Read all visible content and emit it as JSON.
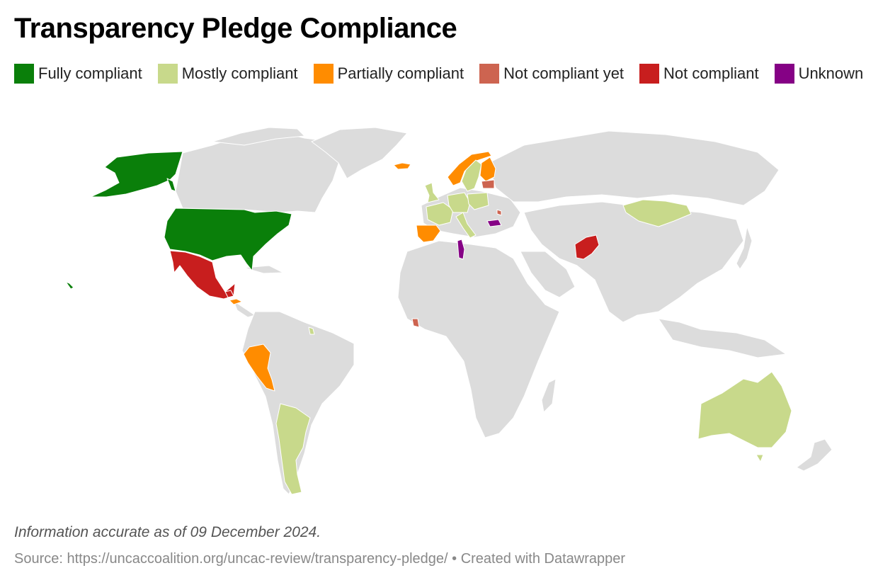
{
  "title": "Transparency Pledge Compliance",
  "legend": [
    {
      "label": "Fully compliant",
      "color": "#0a7f0a"
    },
    {
      "label": "Mostly compliant",
      "color": "#c8d98b"
    },
    {
      "label": "Partially compliant",
      "color": "#ff8c00"
    },
    {
      "label": "Not compliant yet",
      "color": "#cd6450"
    },
    {
      "label": "Not compliant",
      "color": "#c81e1e"
    },
    {
      "label": "Unknown",
      "color": "#850185"
    }
  ],
  "map": {
    "base_color": "#dcdcdc",
    "border_color": "#ffffff",
    "regions": [
      {
        "name": "Alaska",
        "status": "Fully compliant"
      },
      {
        "name": "United States",
        "status": "Fully compliant"
      },
      {
        "name": "Hawaii",
        "status": "Fully compliant"
      },
      {
        "name": "Mexico",
        "status": "Not compliant"
      },
      {
        "name": "Guatemala",
        "status": "Not compliant"
      },
      {
        "name": "Honduras",
        "status": "Partially compliant"
      },
      {
        "name": "Peru",
        "status": "Partially compliant"
      },
      {
        "name": "Argentina",
        "status": "Mostly compliant"
      },
      {
        "name": "Guyana",
        "status": "Mostly compliant"
      },
      {
        "name": "Iceland",
        "status": "Partially compliant"
      },
      {
        "name": "Norway",
        "status": "Partially compliant"
      },
      {
        "name": "Sweden",
        "status": "Mostly compliant"
      },
      {
        "name": "Finland",
        "status": "Partially compliant"
      },
      {
        "name": "Latvia",
        "status": "Not compliant yet"
      },
      {
        "name": "United Kingdom",
        "status": "Mostly compliant"
      },
      {
        "name": "France",
        "status": "Mostly compliant"
      },
      {
        "name": "Germany",
        "status": "Mostly compliant"
      },
      {
        "name": "Spain",
        "status": "Partially compliant"
      },
      {
        "name": "Italy",
        "status": "Mostly compliant"
      },
      {
        "name": "Tunisia",
        "status": "Unknown"
      },
      {
        "name": "Bulgaria",
        "status": "Unknown"
      },
      {
        "name": "Moldova",
        "status": "Not compliant yet"
      },
      {
        "name": "Sierra Leone",
        "status": "Not compliant yet"
      },
      {
        "name": "Afghanistan",
        "status": "Not compliant"
      },
      {
        "name": "Mongolia",
        "status": "Mostly compliant"
      },
      {
        "name": "Australia",
        "status": "Mostly compliant"
      }
    ]
  },
  "note": "Information accurate as of 09 December 2024.",
  "source": {
    "label": "Source:",
    "url": "https://uncaccoalition.org/uncac-review/transparency-pledge/",
    "separator": " • ",
    "credit": "Created with Datawrapper"
  }
}
